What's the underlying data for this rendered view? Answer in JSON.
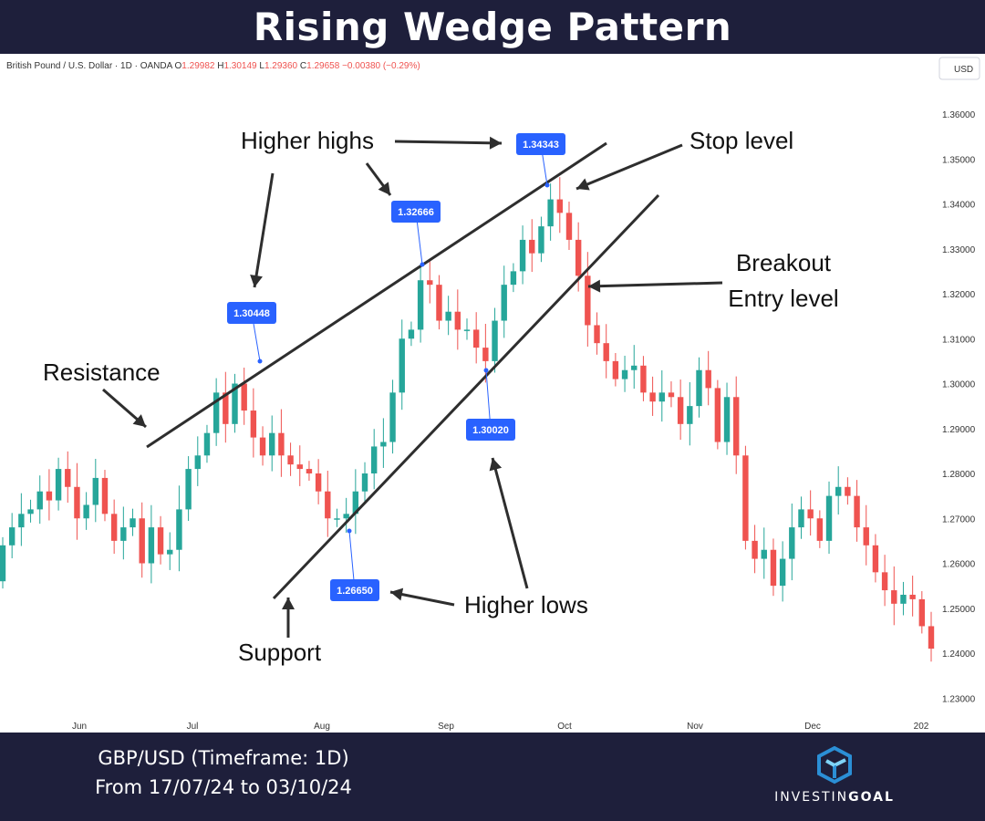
{
  "title": "Rising Wedge Pattern",
  "header": {
    "instrument": "British Pound / U.S. Dollar · 1D · OANDA",
    "ohlc": [
      {
        "label": "O",
        "value": "1.29982"
      },
      {
        "label": "H",
        "value": "1.30149"
      },
      {
        "label": "L",
        "value": "1.29360"
      },
      {
        "label": "C",
        "value": "1.29658"
      }
    ],
    "change": "−0.00380 (−0.29%)",
    "currency": "USD"
  },
  "colors": {
    "up": "#26a69a",
    "down": "#ef5350",
    "annotation": "#2e2e2e",
    "label_bg": "#2962ff",
    "bg": "#1e1f3b",
    "brand": "#2b8fd6"
  },
  "footer": {
    "line1": "GBP/USD (Timeframe: 1D)",
    "line2": "From 17/07/24 to 03/10/24",
    "brand_light": "INVESTIN",
    "brand_bold": "GOAL"
  },
  "annotations": {
    "higher_highs": "Higher highs",
    "stop_level": "Stop level",
    "breakout": "Breakout",
    "entry_level": "Entry level",
    "resistance": "Resistance",
    "higher_lows": "Higher lows",
    "support": "Support"
  },
  "chart_data": {
    "type": "candlestick",
    "y_ticks": [
      "1.36000",
      "1.35000",
      "1.34000",
      "1.33000",
      "1.32000",
      "1.31000",
      "1.30000",
      "1.29000",
      "1.28000",
      "1.27000",
      "1.26000",
      "1.25000",
      "1.24000",
      "1.23000"
    ],
    "x_ticks": [
      "Jun",
      "Jul",
      "Aug",
      "Sep",
      "Oct",
      "Nov",
      "Dec",
      "202"
    ],
    "ylim": [
      1.226,
      1.372
    ],
    "close_path": [
      1.264,
      1.268,
      1.271,
      1.272,
      1.276,
      1.274,
      1.281,
      1.277,
      1.27,
      1.273,
      1.279,
      1.271,
      1.265,
      1.268,
      1.27,
      1.26,
      1.268,
      1.262,
      1.263,
      1.272,
      1.281,
      1.284,
      1.289,
      1.298,
      1.291,
      1.3,
      1.294,
      1.288,
      1.284,
      1.289,
      1.284,
      1.282,
      1.281,
      1.28,
      1.276,
      1.27,
      1.27,
      1.271,
      1.276,
      1.28,
      1.286,
      1.287,
      1.298,
      1.31,
      1.312,
      1.323,
      1.322,
      1.314,
      1.316,
      1.312,
      1.312,
      1.308,
      1.305,
      1.314,
      1.322,
      1.325,
      1.332,
      1.329,
      1.335,
      1.341,
      1.338,
      1.332,
      1.324,
      1.313,
      1.309,
      1.305,
      1.301,
      1.303,
      1.304,
      1.298,
      1.296,
      1.298,
      1.297,
      1.291,
      1.295,
      1.303,
      1.299,
      1.287,
      1.297,
      1.284,
      1.265,
      1.261,
      1.263,
      1.255,
      1.261,
      1.268,
      1.272,
      1.27,
      1.265,
      1.275,
      1.277,
      1.275,
      1.268,
      1.264,
      1.258,
      1.254,
      1.251,
      1.253,
      1.252,
      1.246,
      1.241
    ],
    "marked_prices": [
      {
        "label": "1.30448",
        "value": 1.30448
      },
      {
        "label": "1.32666",
        "value": 1.32666
      },
      {
        "label": "1.34343",
        "value": 1.34343
      },
      {
        "label": "1.30020",
        "value": 1.3002
      },
      {
        "label": "1.26650",
        "value": 1.2665
      }
    ]
  }
}
